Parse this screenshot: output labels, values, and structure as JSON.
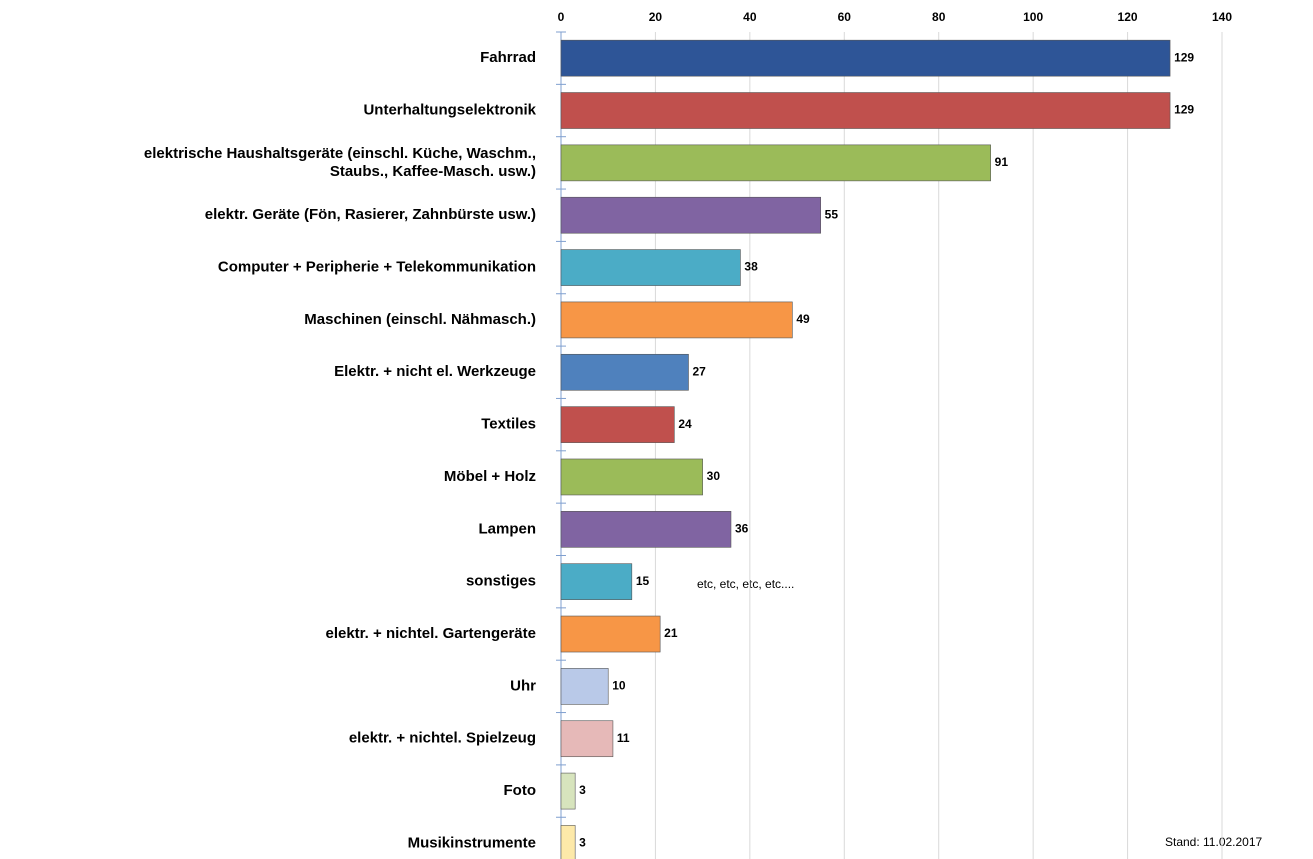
{
  "chart_data": {
    "type": "bar",
    "orientation": "horizontal",
    "categories": [
      "Fahrrad",
      "Unterhaltungselektronik",
      "elektrische Haushaltsgeräte (einschl. Küche, Waschm.,\nStaubs., Kaffee-Masch. usw.)",
      "elektr. Geräte (Fön, Rasierer, Zahnbürste usw.)",
      "Computer + Peripherie + Telekommunikation",
      "Maschinen (einschl. Nähmasch.)",
      "Elektr. + nicht el. Werkzeuge",
      "Textiles",
      "Möbel + Holz",
      "Lampen",
      "sonstiges",
      "elektr. + nichtel. Gartengeräte",
      "Uhr",
      "elektr. + nichtel. Spielzeug",
      "Foto",
      "Musikinstrumente"
    ],
    "values": [
      129,
      129,
      91,
      55,
      38,
      49,
      27,
      24,
      30,
      36,
      15,
      21,
      10,
      11,
      3,
      3
    ],
    "colors": [
      "#2e5597",
      "#c0504d",
      "#9bbb59",
      "#8064a2",
      "#4bacc6",
      "#f79646",
      "#4f81bd",
      "#c0504d",
      "#9bbb59",
      "#8064a2",
      "#4bacc6",
      "#f79646",
      "#b9c9e8",
      "#e6b9b8",
      "#d7e4bd",
      "#fde9a9"
    ],
    "xlim": [
      0,
      140
    ],
    "xticks": [
      0,
      20,
      40,
      60,
      80,
      100,
      120,
      140
    ],
    "grid": true,
    "annotations": [
      "etc, etc, etc, etc....",
      "Stand: 11.02.2017"
    ]
  }
}
